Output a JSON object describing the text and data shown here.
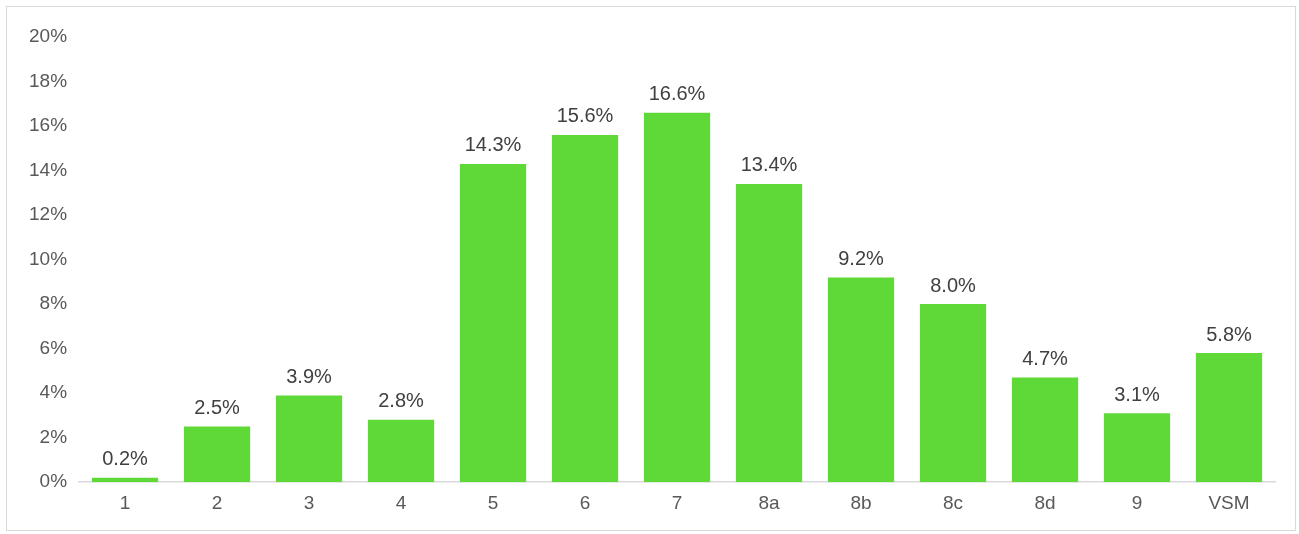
{
  "chart_data": {
    "type": "bar",
    "categories": [
      "1",
      "2",
      "3",
      "4",
      "5",
      "6",
      "7",
      "8a",
      "8b",
      "8c",
      "8d",
      "9",
      "VSM"
    ],
    "values": [
      0.2,
      2.5,
      3.9,
      2.8,
      14.3,
      15.6,
      16.6,
      13.4,
      9.2,
      8.0,
      4.7,
      3.1,
      5.8
    ],
    "value_labels": [
      "0.2%",
      "2.5%",
      "3.9%",
      "2.8%",
      "14.3%",
      "15.6%",
      "16.6%",
      "13.4%",
      "9.2%",
      "8.0%",
      "4.7%",
      "3.1%",
      "5.8%"
    ],
    "color": "#5fd938",
    "ylim": [
      0,
      20
    ],
    "yticks": [
      {
        "value": 0,
        "label": "0%"
      },
      {
        "value": 2,
        "label": "2%"
      },
      {
        "value": 4,
        "label": "4%"
      },
      {
        "value": 6,
        "label": "6%"
      },
      {
        "value": 8,
        "label": "8%"
      },
      {
        "value": 10,
        "label": "10%"
      },
      {
        "value": 12,
        "label": "12%"
      },
      {
        "value": 14,
        "label": "14%"
      },
      {
        "value": 16,
        "label": "16%"
      },
      {
        "value": 18,
        "label": "18%"
      },
      {
        "value": 20,
        "label": "20%"
      }
    ],
    "grid": false,
    "legend": false
  }
}
